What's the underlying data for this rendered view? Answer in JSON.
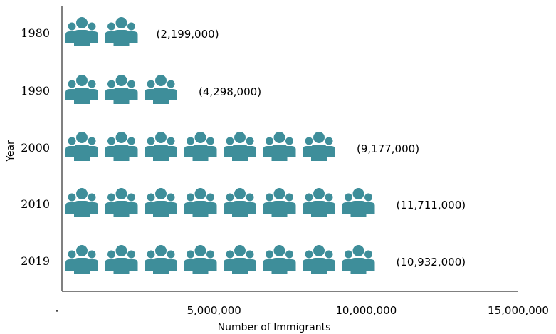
{
  "chart_data": {
    "type": "bar",
    "categories": [
      "1980",
      "1990",
      "2000",
      "2010",
      "2019"
    ],
    "values": [
      2199000,
      4298000,
      9177000,
      11711000,
      10932000
    ],
    "value_labels": [
      "(2,199,000)",
      "(4,298,000)",
      "(9,177,000)",
      "(11,711,000)",
      "(10,932,000)"
    ],
    "orientation": "horizontal",
    "xlabel": "Number of Immigrants",
    "ylabel": "Year",
    "xlim": [
      0,
      15000000
    ],
    "x_ticks": [
      "-",
      "5,000,000",
      "10,000,000",
      "15,000,000"
    ],
    "x_tick_values": [
      0,
      5000000,
      10000000,
      15000000
    ],
    "icons_per_unit": 1400000,
    "icon": "people-group-icon",
    "color": "#3e8e9a",
    "grid": false
  }
}
